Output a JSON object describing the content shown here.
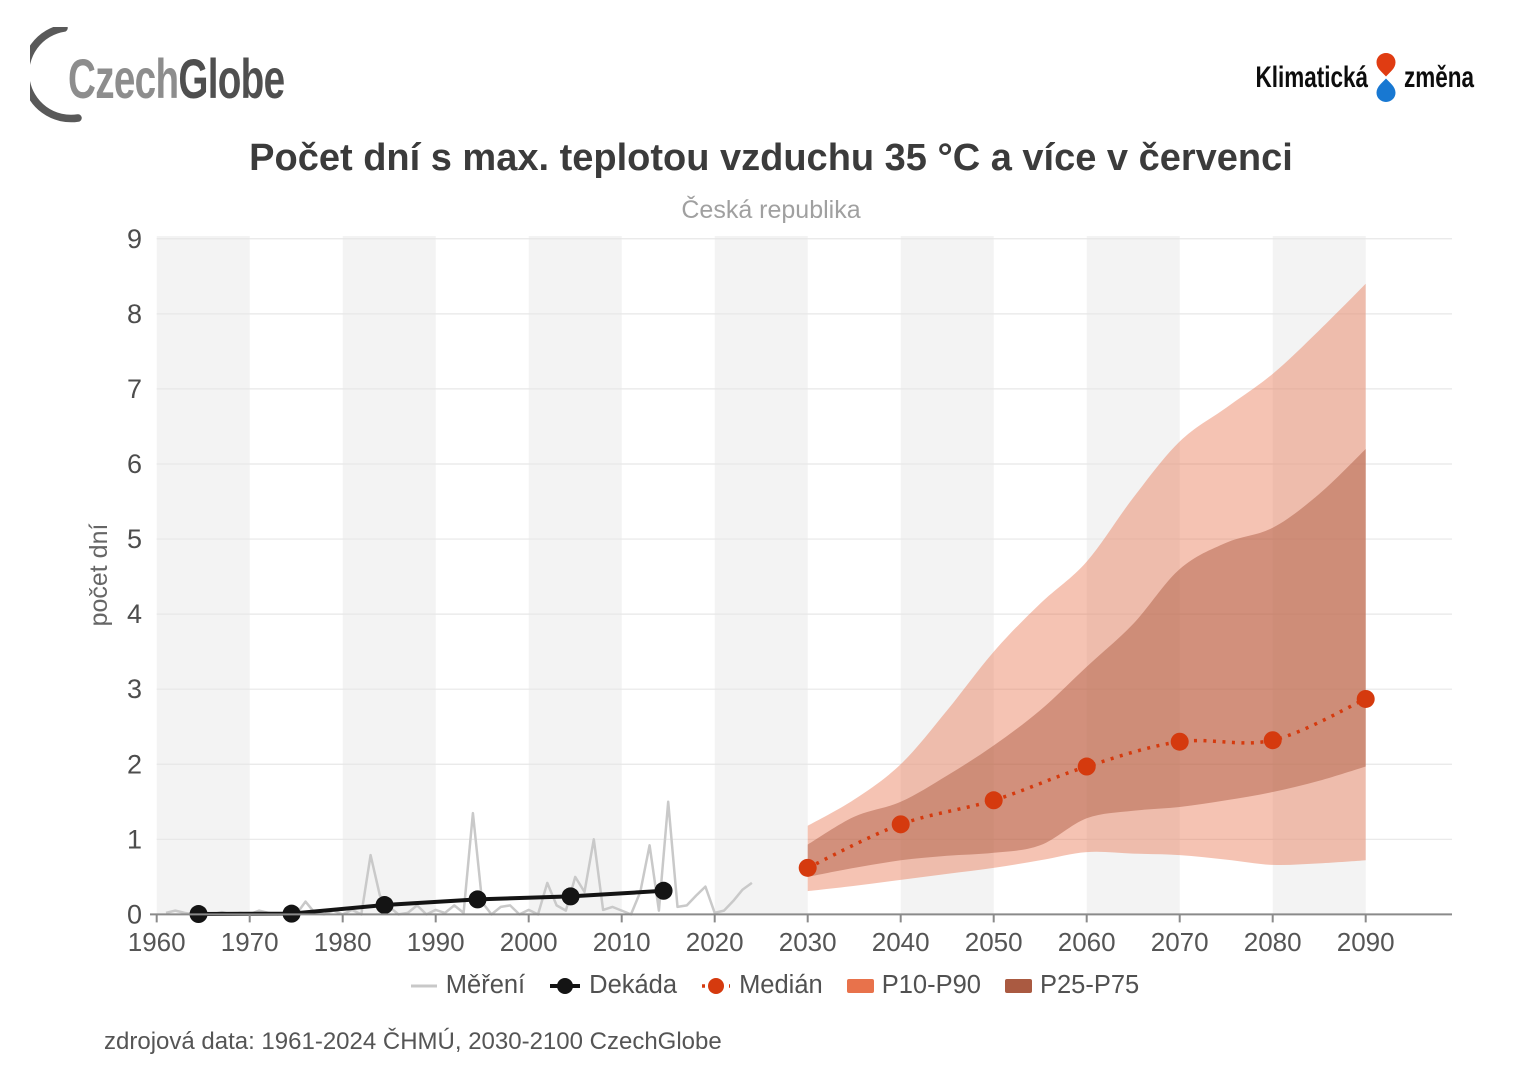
{
  "header": {
    "czechglobe": {
      "part1": "Czech",
      "part2": "Globe"
    },
    "klimaticka": {
      "word1": "Klimatická",
      "word2": "změna"
    }
  },
  "title": "Počet dní s max. teplotou vzduchu 35 °C a více v červenci",
  "subtitle": "Česká republika",
  "footer": "zdrojová data: 1961-2024 ČHMÚ, 2030-2100 CzechGlobe",
  "legend": [
    {
      "label": "Měření",
      "type": "line",
      "color": "#c8c8c8"
    },
    {
      "label": "Dekáda",
      "type": "line-dot",
      "color": "#141414"
    },
    {
      "label": "Medián",
      "type": "dotted-dot",
      "color": "#d53a0e"
    },
    {
      "label": "P10-P90",
      "type": "rect",
      "color": "#e8724b"
    },
    {
      "label": "P25-P75",
      "type": "rect",
      "color": "#aa5a41"
    }
  ],
  "chart_data": {
    "type": "line",
    "title": "Počet dní s max. teplotou vzduchu 35 °C a více v červenci",
    "subtitle": "Česká republika",
    "ylabel": "počet dní",
    "ylim": [
      0,
      9
    ],
    "xlim": [
      1960,
      2100
    ],
    "x_ticks": [
      1960,
      1970,
      1980,
      1990,
      2000,
      2010,
      2020,
      2030,
      2040,
      2050,
      2060,
      2070,
      2080,
      2090
    ],
    "y_ticks": [
      0,
      1,
      2,
      3,
      4,
      5,
      6,
      7,
      8,
      9
    ],
    "stripe_color": "#f3f3f3",
    "grid_color": "#e7e7e7",
    "axis_color": "#8a8a8a",
    "tick_label_color": "#555555",
    "series": [
      {
        "name": "P10-P90",
        "kind": "band",
        "fill": "rgba(230,111,73,0.42)",
        "x": [
          2030,
          2035,
          2040,
          2045,
          2050,
          2055,
          2060,
          2065,
          2070,
          2075,
          2080,
          2085,
          2090
        ],
        "upper": [
          1.18,
          1.53,
          2.0,
          2.72,
          3.5,
          4.14,
          4.7,
          5.55,
          6.3,
          6.75,
          7.2,
          7.78,
          8.4
        ],
        "lower": [
          0.31,
          0.38,
          0.46,
          0.54,
          0.62,
          0.72,
          0.83,
          0.81,
          0.79,
          0.73,
          0.66,
          0.68,
          0.72
        ]
      },
      {
        "name": "P25-P75",
        "kind": "band",
        "fill": "rgba(168,85,58,0.46)",
        "x": [
          2030,
          2035,
          2040,
          2045,
          2050,
          2055,
          2060,
          2065,
          2070,
          2075,
          2080,
          2085,
          2090
        ],
        "upper": [
          0.93,
          1.3,
          1.5,
          1.85,
          2.25,
          2.72,
          3.3,
          3.87,
          4.6,
          4.95,
          5.15,
          5.6,
          6.2
        ],
        "lower": [
          0.5,
          0.62,
          0.72,
          0.78,
          0.82,
          0.92,
          1.28,
          1.38,
          1.43,
          1.52,
          1.63,
          1.78,
          1.97
        ]
      },
      {
        "name": "Měření",
        "kind": "line",
        "color": "#c9c9c9",
        "width": 2.5,
        "x_start": 1961,
        "values": [
          0.02,
          0.05,
          0.02,
          0,
          0.03,
          0,
          0.03,
          0,
          0.02,
          0,
          0.05,
          0.02,
          0,
          0.02,
          0,
          0.17,
          0.02,
          0,
          0.05,
          0,
          0.06,
          0,
          0.79,
          0.25,
          0.1,
          0,
          0.02,
          0.12,
          0,
          0.06,
          0.02,
          0.12,
          0.02,
          1.35,
          0.16,
          0,
          0.1,
          0.12,
          0,
          0.06,
          0,
          0.42,
          0.12,
          0.05,
          0.5,
          0.3,
          1.0,
          0.06,
          0.1,
          0.05,
          0,
          0.3,
          0.92,
          0.05,
          1.5,
          0.1,
          0.12,
          0.25,
          0.37,
          0.02,
          0.05,
          0.18,
          0.33,
          0.42
        ]
      },
      {
        "name": "Dekáda",
        "kind": "line-dots",
        "color": "#141414",
        "width": 4,
        "dot_r": 9,
        "x": [
          1964.5,
          1974.5,
          1984.5,
          1994.5,
          2004.5,
          2014.5
        ],
        "values": [
          0.005,
          0.01,
          0.125,
          0.2,
          0.24,
          0.315
        ]
      },
      {
        "name": "Medián",
        "kind": "dotted-dots",
        "color": "#d53a0e",
        "width": 3.5,
        "dot_r": 9,
        "x": [
          2030,
          2040,
          2050,
          2060,
          2070,
          2080,
          2090
        ],
        "values": [
          0.62,
          1.2,
          1.52,
          1.97,
          2.3,
          2.32,
          2.87
        ]
      }
    ]
  }
}
